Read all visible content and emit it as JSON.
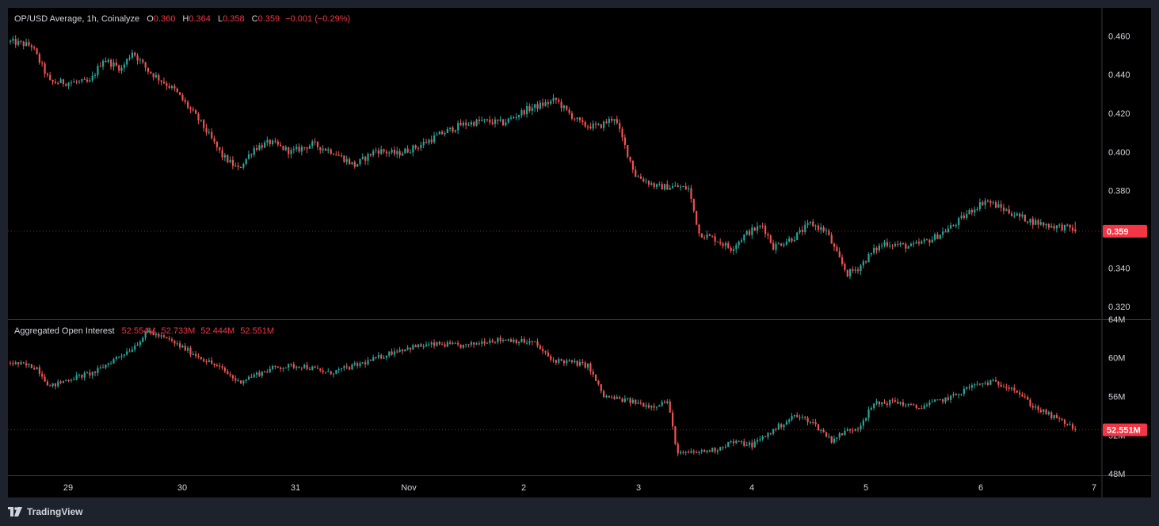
{
  "price_legend": {
    "title": "OP/USD Average, 1h, Coinalyze",
    "open_key": "O",
    "open": "0.360",
    "high_key": "H",
    "high": "0.364",
    "low_key": "L",
    "low": "0.358",
    "close_key": "C",
    "close": "0.359",
    "change": "−0.001 (−0.29%)"
  },
  "oi_legend": {
    "title": "Aggregated Open Interest",
    "values": [
      "52.554M",
      "52.733M",
      "52.444M",
      "52.551M"
    ]
  },
  "price_badge": "0.359",
  "oi_badge": "52.551M",
  "footer": {
    "brand": "TradingView",
    "logo_icon": "tradingview-logo-icon"
  },
  "colors": {
    "up": "#26a69a",
    "down": "#ef5350",
    "badge": "#f23645",
    "grid": "#363a45",
    "axis_text": "#d1d4dc"
  },
  "chart_data": [
    {
      "type": "candlestick",
      "title": "OP/USD Average, 1h, Coinalyze",
      "x_ticks": [
        "29",
        "30",
        "31",
        "Nov",
        "2",
        "3",
        "4",
        "5",
        "6",
        "7"
      ],
      "y_ticks": [
        "0.460",
        "0.440",
        "0.420",
        "0.400",
        "0.380",
        "0.360",
        "0.340",
        "0.320"
      ],
      "y_tick_values": [
        0.46,
        0.44,
        0.42,
        0.4,
        0.38,
        0.36,
        0.34,
        0.32
      ],
      "ylim": [
        0.3135,
        0.4745
      ],
      "last_close": 0.359,
      "ohlc_last": {
        "open": 0.36,
        "high": 0.364,
        "low": 0.358,
        "close": 0.359
      },
      "trend_points": [
        [
          0,
          0.457
        ],
        [
          8,
          0.455
        ],
        [
          15,
          0.436
        ],
        [
          30,
          0.436
        ],
        [
          35,
          0.448
        ],
        [
          42,
          0.443
        ],
        [
          46,
          0.452
        ],
        [
          52,
          0.442
        ],
        [
          62,
          0.432
        ],
        [
          72,
          0.415
        ],
        [
          80,
          0.398
        ],
        [
          86,
          0.391
        ],
        [
          92,
          0.402
        ],
        [
          98,
          0.405
        ],
        [
          106,
          0.4
        ],
        [
          114,
          0.404
        ],
        [
          122,
          0.4
        ],
        [
          130,
          0.393
        ],
        [
          138,
          0.401
        ],
        [
          146,
          0.399
        ],
        [
          154,
          0.403
        ],
        [
          162,
          0.409
        ],
        [
          170,
          0.414
        ],
        [
          178,
          0.416
        ],
        [
          186,
          0.415
        ],
        [
          195,
          0.422
        ],
        [
          202,
          0.425
        ],
        [
          206,
          0.427
        ],
        [
          210,
          0.421
        ],
        [
          216,
          0.414
        ],
        [
          222,
          0.413
        ],
        [
          228,
          0.418
        ],
        [
          236,
          0.388
        ],
        [
          244,
          0.382
        ],
        [
          252,
          0.382
        ],
        [
          256,
          0.381
        ],
        [
          260,
          0.358
        ],
        [
          266,
          0.355
        ],
        [
          272,
          0.35
        ],
        [
          278,
          0.358
        ],
        [
          284,
          0.362
        ],
        [
          288,
          0.351
        ],
        [
          296,
          0.356
        ],
        [
          302,
          0.363
        ],
        [
          308,
          0.359
        ],
        [
          312,
          0.347
        ],
        [
          316,
          0.337
        ],
        [
          320,
          0.34
        ],
        [
          326,
          0.349
        ],
        [
          330,
          0.353
        ],
        [
          340,
          0.351
        ],
        [
          348,
          0.355
        ],
        [
          356,
          0.362
        ],
        [
          362,
          0.369
        ],
        [
          368,
          0.375
        ],
        [
          374,
          0.371
        ],
        [
          380,
          0.367
        ],
        [
          386,
          0.364
        ],
        [
          392,
          0.362
        ],
        [
          398,
          0.361
        ],
        [
          402,
          0.36
        ]
      ],
      "candle_count": 403
    },
    {
      "type": "candlestick",
      "title": "Aggregated Open Interest",
      "y_ticks": [
        "64M",
        "60M",
        "56M",
        "52M",
        "48M"
      ],
      "y_tick_values": [
        64,
        60,
        56,
        52,
        48
      ],
      "ylim": [
        47.85,
        63.9
      ],
      "last_value": 52.551,
      "trend_points": [
        [
          0,
          59.5
        ],
        [
          10,
          59.0
        ],
        [
          15,
          57.0
        ],
        [
          22,
          57.8
        ],
        [
          32,
          58.5
        ],
        [
          40,
          60.0
        ],
        [
          46,
          61.0
        ],
        [
          52,
          62.7
        ],
        [
          60,
          61.8
        ],
        [
          70,
          60.3
        ],
        [
          80,
          58.8
        ],
        [
          86,
          57.5
        ],
        [
          92,
          58.2
        ],
        [
          100,
          59.0
        ],
        [
          110,
          59.2
        ],
        [
          120,
          58.4
        ],
        [
          128,
          59.0
        ],
        [
          136,
          59.7
        ],
        [
          146,
          60.8
        ],
        [
          154,
          61.2
        ],
        [
          162,
          61.4
        ],
        [
          172,
          61.2
        ],
        [
          180,
          61.8
        ],
        [
          188,
          61.9
        ],
        [
          198,
          61.5
        ],
        [
          204,
          59.8
        ],
        [
          210,
          59.6
        ],
        [
          218,
          59.2
        ],
        [
          224,
          56.0
        ],
        [
          234,
          55.5
        ],
        [
          242,
          55.0
        ],
        [
          248,
          55.5
        ],
        [
          252,
          50.0
        ],
        [
          258,
          50.2
        ],
        [
          266,
          50.5
        ],
        [
          272,
          51.3
        ],
        [
          280,
          51.0
        ],
        [
          288,
          52.5
        ],
        [
          296,
          54.0
        ],
        [
          302,
          53.5
        ],
        [
          310,
          51.5
        ],
        [
          316,
          52.5
        ],
        [
          320,
          52.8
        ],
        [
          326,
          55.2
        ],
        [
          334,
          55.5
        ],
        [
          342,
          54.8
        ],
        [
          350,
          55.5
        ],
        [
          356,
          56.0
        ],
        [
          362,
          57.0
        ],
        [
          370,
          57.5
        ],
        [
          378,
          57.0
        ],
        [
          386,
          55.0
        ],
        [
          394,
          53.8
        ],
        [
          398,
          53.3
        ],
        [
          402,
          52.6
        ]
      ],
      "candle_count": 403
    }
  ]
}
